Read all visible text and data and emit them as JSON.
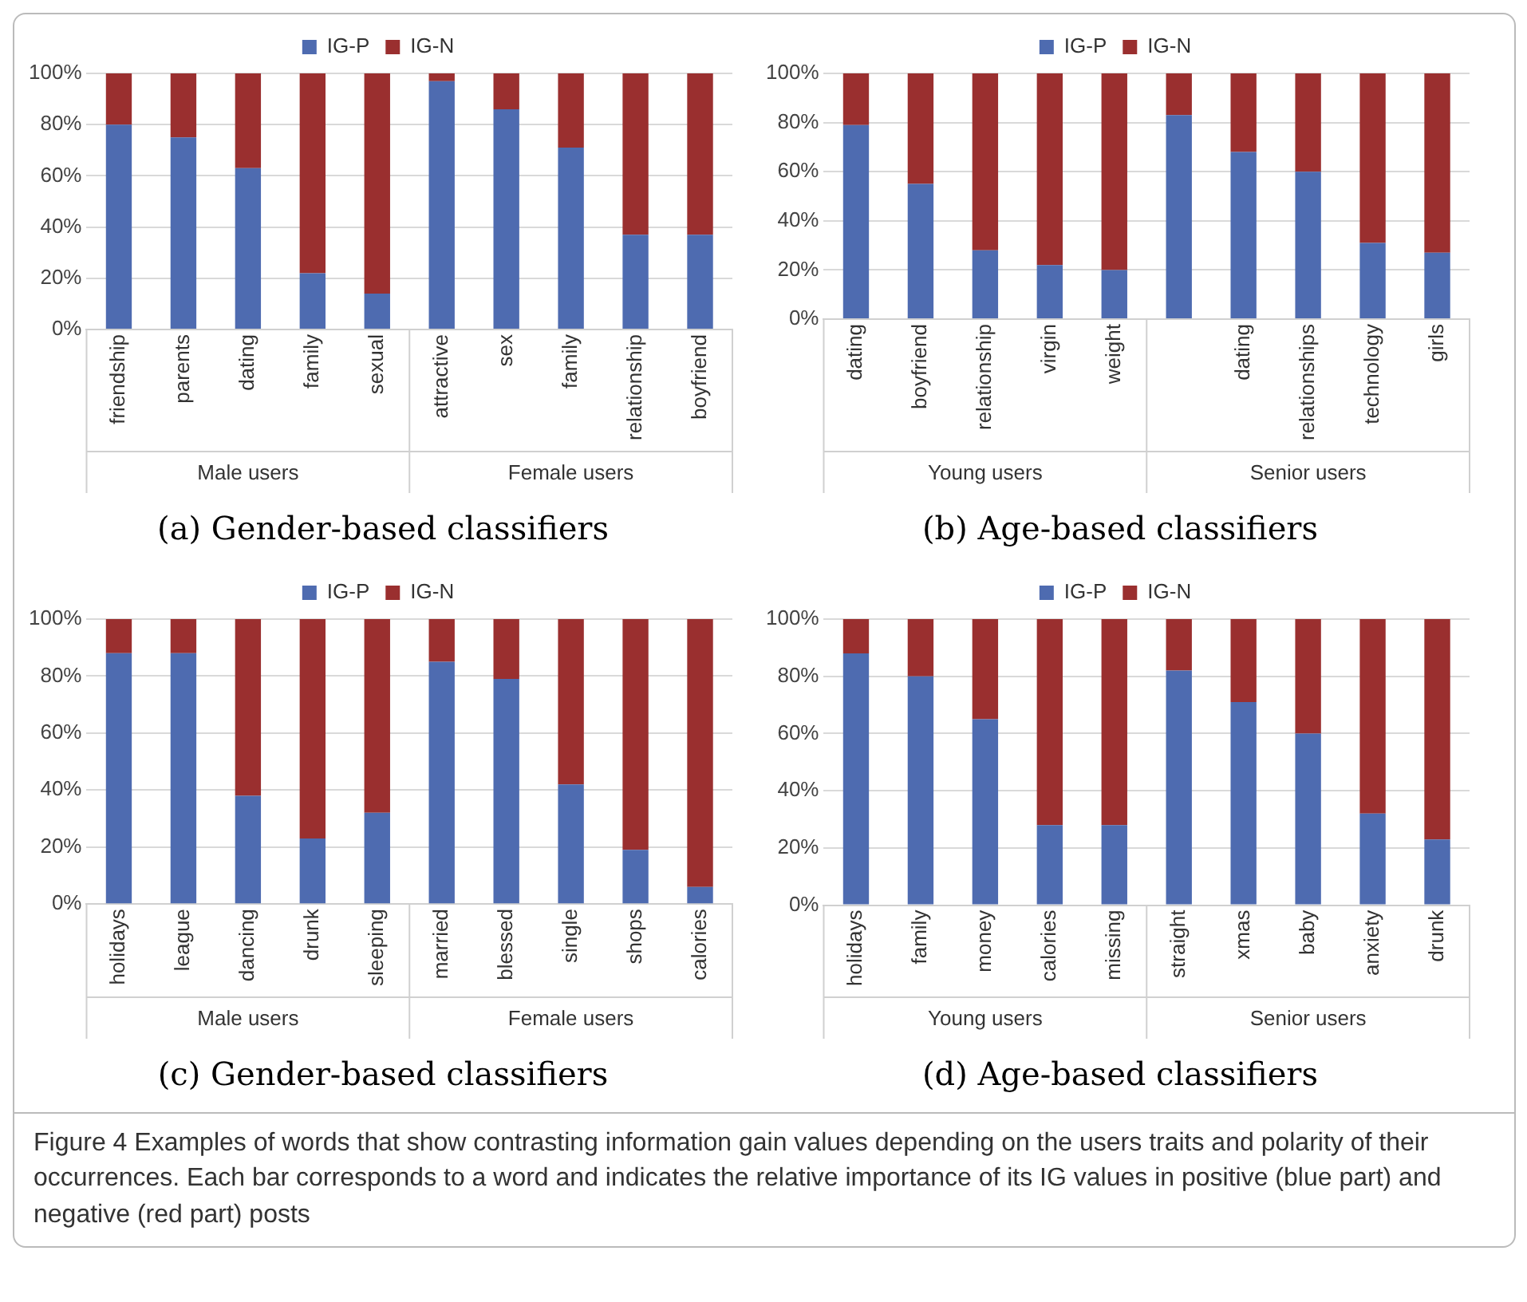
{
  "chart_data": [
    {
      "type": "bar",
      "title": "(a) Gender-based classifiers",
      "categories": [
        "friendship",
        "parents",
        "dating",
        "family",
        "sexual",
        "attractive",
        "sex",
        "family",
        "relationship",
        "boyfriend"
      ],
      "stacked": true,
      "series": [
        {
          "name": "IG-P",
          "color": "#4e6bb0",
          "values": [
            80,
            75,
            63,
            22,
            14,
            97,
            86,
            71,
            37,
            37
          ]
        },
        {
          "name": "IG-N",
          "color": "#9a2f2f",
          "values": [
            20,
            25,
            37,
            78,
            86,
            3,
            14,
            29,
            63,
            63
          ]
        }
      ],
      "ylim": [
        0,
        100
      ],
      "yticks": [
        {
          "value": 0,
          "label": "0%"
        },
        {
          "value": 20,
          "label": "20%"
        },
        {
          "value": 40,
          "label": "40%"
        },
        {
          "value": 60,
          "label": "60%"
        },
        {
          "value": 80,
          "label": "80%"
        },
        {
          "value": 100,
          "label": "100%"
        }
      ],
      "grid": "y",
      "legend": "top",
      "annotations": [
        "Male users",
        "Female users"
      ]
    },
    {
      "type": "bar",
      "title": "(b) Age-based classifiers",
      "categories": [
        "dating",
        "boyfriend",
        "relationship",
        "virgin",
        "weight",
        null,
        "dating",
        "relationships",
        "technology",
        "girls"
      ],
      "stacked": true,
      "series": [
        {
          "name": "IG-P",
          "color": "#4e6bb0",
          "values": [
            79,
            55,
            28,
            22,
            20,
            83,
            68,
            60,
            31,
            27
          ]
        },
        {
          "name": "IG-N",
          "color": "#9a2f2f",
          "values": [
            21,
            45,
            72,
            78,
            80,
            17,
            32,
            40,
            69,
            73
          ]
        }
      ],
      "ylim": [
        0,
        100
      ],
      "yticks": [
        {
          "value": 0,
          "label": "0%"
        },
        {
          "value": 20,
          "label": "20%"
        },
        {
          "value": 40,
          "label": "40%"
        },
        {
          "value": 60,
          "label": "60%"
        },
        {
          "value": 80,
          "label": "80%"
        },
        {
          "value": 100,
          "label": "100%"
        }
      ],
      "grid": "y",
      "legend": "top",
      "annotations": [
        "Young users",
        "Senior users"
      ]
    },
    {
      "type": "bar",
      "title": "(c) Gender-based classifiers",
      "categories": [
        "holidays",
        "league",
        "dancing",
        "drunk",
        "sleeping",
        "married",
        "blessed",
        "single",
        "shops",
        "calories"
      ],
      "stacked": true,
      "series": [
        {
          "name": "IG-P",
          "color": "#4e6bb0",
          "values": [
            88,
            88,
            38,
            23,
            32,
            85,
            79,
            42,
            19,
            6
          ]
        },
        {
          "name": "IG-N",
          "color": "#9a2f2f",
          "values": [
            12,
            12,
            62,
            77,
            68,
            15,
            21,
            58,
            81,
            94
          ]
        }
      ],
      "ylim": [
        0,
        100
      ],
      "yticks": [
        {
          "value": 0,
          "label": "0%"
        },
        {
          "value": 20,
          "label": "20%"
        },
        {
          "value": 40,
          "label": "40%"
        },
        {
          "value": 60,
          "label": "60%"
        },
        {
          "value": 80,
          "label": "80%"
        },
        {
          "value": 100,
          "label": "100%"
        }
      ],
      "grid": "y",
      "legend": "top",
      "annotations": [
        "Male users",
        "Female users"
      ]
    },
    {
      "type": "bar",
      "title": "(d) Age-based classifiers",
      "categories": [
        "holidays",
        "family",
        "money",
        "calories",
        "missing",
        "straight",
        "xmas",
        "baby",
        "anxiety",
        "drunk"
      ],
      "stacked": true,
      "series": [
        {
          "name": "IG-P",
          "color": "#4e6bb0",
          "values": [
            88,
            80,
            65,
            28,
            28,
            82,
            71,
            60,
            32,
            23
          ]
        },
        {
          "name": "IG-N",
          "color": "#9a2f2f",
          "values": [
            12,
            20,
            35,
            72,
            72,
            18,
            29,
            40,
            68,
            77
          ]
        }
      ],
      "ylim": [
        0,
        100
      ],
      "yticks": [
        {
          "value": 0,
          "label": "0%"
        },
        {
          "value": 20,
          "label": "20%"
        },
        {
          "value": 40,
          "label": "40%"
        },
        {
          "value": 60,
          "label": "60%"
        },
        {
          "value": 80,
          "label": "80%"
        },
        {
          "value": 100,
          "label": "100%"
        }
      ],
      "grid": "y",
      "legend": "top",
      "annotations": [
        "Young users",
        "Senior users",
        "Figure 4  Examples of words that show contrasting information gain values depending on the users traits and polarity of their occurrences. Each bar corresponds to a word and indicates the relative importance of its IG values in positive (blue part) and negative (red part) posts"
      ]
    }
  ]
}
